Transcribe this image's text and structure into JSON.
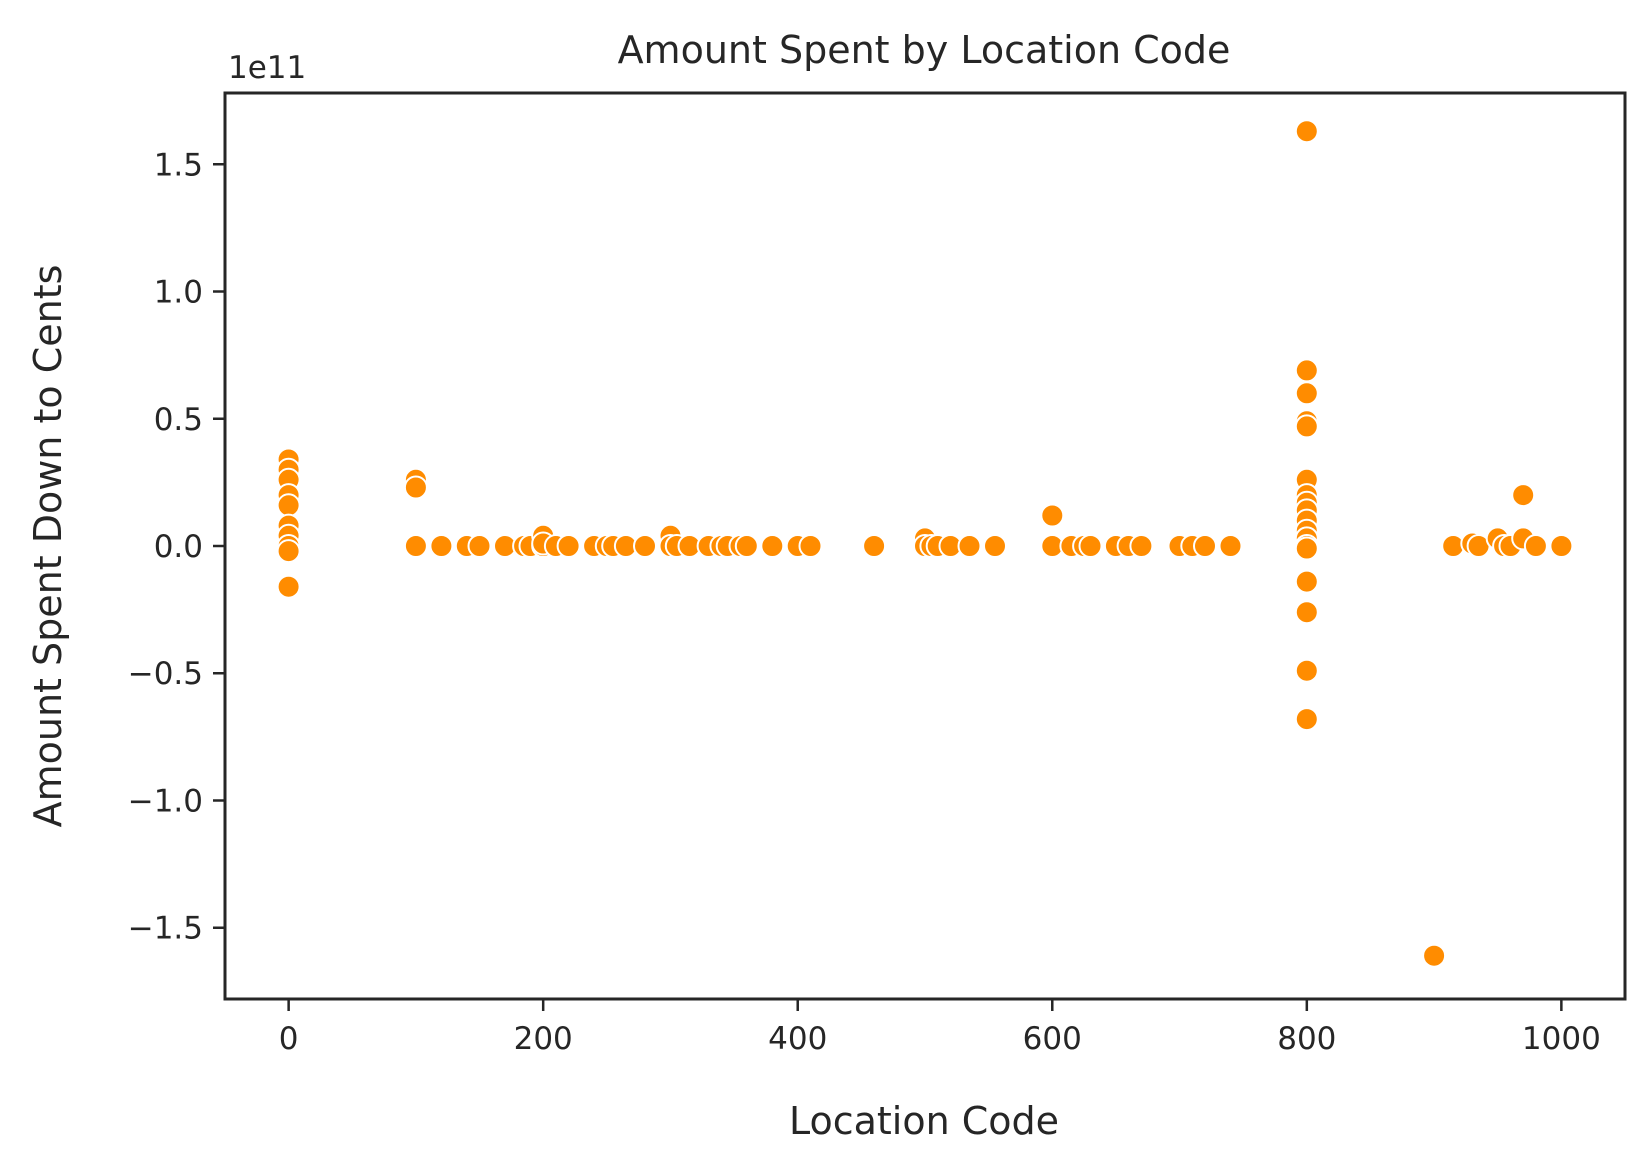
{
  "chart_data": {
    "type": "scatter",
    "title": "Amount Spent by Location Code",
    "xlabel": "Location Code",
    "ylabel": "Amount Spent Down to Cents",
    "y_offset_text": "1e11",
    "y_scale_factor": 100000000000,
    "xlim": [
      -50,
      1050
    ],
    "ylim": [
      -1.78,
      1.78
    ],
    "xticks": [
      0,
      200,
      400,
      600,
      800,
      1000
    ],
    "xtick_labels": [
      "0",
      "200",
      "400",
      "600",
      "800",
      "1000"
    ],
    "yticks": [
      -1.5,
      -1.0,
      -0.5,
      0.0,
      0.5,
      1.0,
      1.5
    ],
    "ytick_labels": [
      "−1.5",
      "−1.0",
      "−0.5",
      "0.0",
      "0.5",
      "1.0",
      "1.5"
    ],
    "grid": false,
    "legend": "none",
    "marker_color": "#ff8c00",
    "marker_edge_color": "#ffffff",
    "x": [
      0,
      0,
      0,
      0,
      0,
      0,
      0,
      0,
      0,
      0,
      100,
      100,
      100,
      120,
      140,
      150,
      170,
      185,
      190,
      200,
      200,
      200,
      210,
      220,
      240,
      250,
      255,
      265,
      280,
      300,
      300,
      305,
      315,
      330,
      340,
      345,
      355,
      360,
      380,
      400,
      410,
      460,
      500,
      500,
      505,
      510,
      520,
      535,
      555,
      600,
      600,
      615,
      625,
      630,
      650,
      660,
      670,
      700,
      710,
      720,
      740,
      800,
      800,
      800,
      800,
      800,
      800,
      800,
      800,
      800,
      800,
      800,
      800,
      800,
      800,
      800,
      800,
      800,
      800,
      900,
      915,
      930,
      935,
      950,
      955,
      960,
      970,
      970,
      980,
      1000
    ],
    "y": [
      0.34,
      0.3,
      0.26,
      0.2,
      0.16,
      0.08,
      0.04,
      0.0,
      -0.02,
      -0.16,
      0.26,
      0.23,
      0.0,
      0.0,
      0.0,
      0.0,
      0.0,
      0.0,
      0.0,
      0.04,
      0.0,
      0.01,
      0.0,
      0.0,
      0.0,
      0.0,
      0.0,
      0.0,
      0.0,
      0.04,
      0.0,
      0.0,
      0.0,
      0.0,
      0.0,
      0.0,
      0.0,
      0.0,
      0.0,
      0.0,
      0.0,
      0.0,
      0.03,
      0.0,
      0.0,
      0.0,
      0.0,
      0.0,
      0.0,
      0.12,
      0.0,
      0.0,
      0.0,
      0.0,
      0.0,
      0.0,
      0.0,
      0.0,
      0.0,
      0.0,
      0.0,
      1.63,
      0.69,
      0.6,
      0.49,
      0.47,
      0.26,
      0.2,
      0.17,
      0.14,
      0.1,
      0.06,
      0.03,
      0.0,
      -0.01,
      -0.14,
      -0.26,
      -0.49,
      -0.68,
      -1.61,
      0.0,
      0.01,
      0.0,
      0.03,
      0.0,
      0.0,
      0.2,
      0.03,
      0.0,
      0.0
    ]
  }
}
